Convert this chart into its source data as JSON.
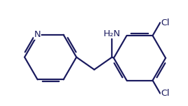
{
  "bg_color": "#ffffff",
  "line_color": "#1a1a5e",
  "line_width": 1.6,
  "font_size": 9.5,
  "atoms": {
    "N_label": "N",
    "NH2_label": "H₂N",
    "Cl1_label": "Cl",
    "Cl2_label": "Cl"
  },
  "figsize": [
    2.74,
    1.55
  ],
  "dpi": 100
}
